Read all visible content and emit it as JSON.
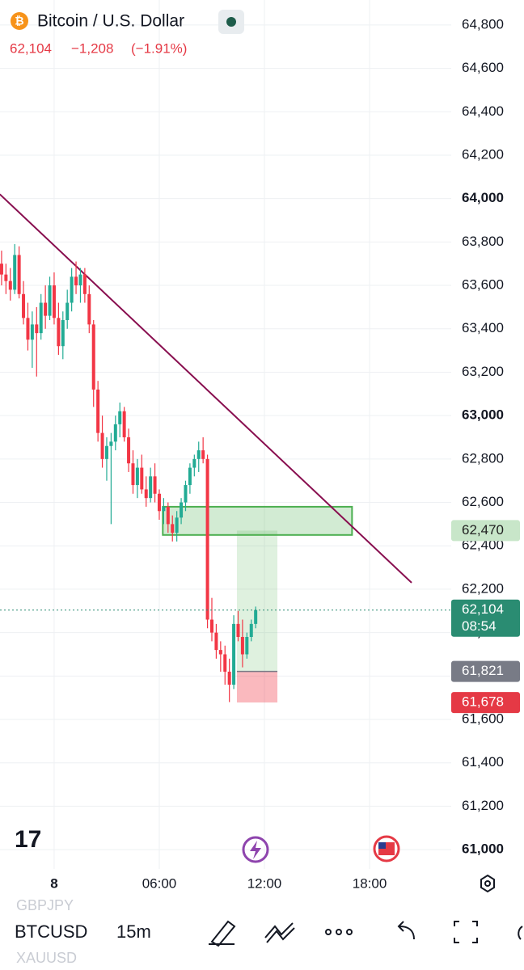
{
  "header": {
    "symbol_title": "Bitcoin / U.S. Dollar",
    "quote": "62,104",
    "change": "−1,208",
    "change_percent": "(−1.91%)"
  },
  "chart_data": {
    "type": "candlestick",
    "up_color": "#22ab94",
    "down_color": "#f23645",
    "xlim": [
      -3.09,
      22.66
    ],
    "ylim": [
      60911,
      64915
    ],
    "xticks": [
      {
        "value": 0,
        "label": "8"
      },
      {
        "value": 6,
        "label": "06:00"
      },
      {
        "value": 12,
        "label": "12:00"
      },
      {
        "value": 18,
        "label": "18:00"
      }
    ],
    "yticks": [
      {
        "value": 61000,
        "label": "61,000"
      },
      {
        "value": 61200,
        "label": "61,200"
      },
      {
        "value": 61400,
        "label": "61,400"
      },
      {
        "value": 61600,
        "label": "61,600"
      },
      {
        "value": 61800,
        "label": "61,800"
      },
      {
        "value": 62000,
        "label": "62,000"
      },
      {
        "value": 62200,
        "label": "62,200"
      },
      {
        "value": 62400,
        "label": "62,400"
      },
      {
        "value": 62600,
        "label": "62,600"
      },
      {
        "value": 62800,
        "label": "62,800"
      },
      {
        "value": 63000,
        "label": "63,000"
      },
      {
        "value": 63200,
        "label": "63,200"
      },
      {
        "value": 63400,
        "label": "63,400"
      },
      {
        "value": 63600,
        "label": "63,600"
      },
      {
        "value": 63800,
        "label": "63,800"
      },
      {
        "value": 64000,
        "label": "64,000"
      },
      {
        "value": 64200,
        "label": "64,200"
      },
      {
        "value": 64400,
        "label": "64,400"
      },
      {
        "value": 64600,
        "label": "64,600"
      },
      {
        "value": 64800,
        "label": "64,800"
      }
    ],
    "grid": true,
    "x": [
      -3,
      -2.75,
      -2.5,
      -2.25,
      -2,
      -1.75,
      -1.5,
      -1.25,
      -1,
      -0.75,
      -0.5,
      -0.25,
      0,
      0.25,
      0.5,
      0.75,
      1,
      1.25,
      1.5,
      1.75,
      2,
      2.25,
      2.5,
      2.75,
      3,
      3.25,
      3.5,
      3.75,
      4,
      4.25,
      4.5,
      4.75,
      5,
      5.25,
      5.5,
      5.75,
      6,
      6.25,
      6.5,
      6.75,
      7,
      7.25,
      7.5,
      7.75,
      8,
      8.25,
      8.5,
      8.75,
      9,
      9.25,
      9.5,
      9.75,
      10,
      10.25,
      10.5,
      10.75,
      11,
      11.25,
      11.5
    ],
    "open": [
      63700,
      63650,
      63620,
      63580,
      63740,
      63560,
      63450,
      63350,
      63420,
      63380,
      63520,
      63460,
      63600,
      63450,
      63320,
      63440,
      63520,
      63640,
      63600,
      63650,
      63560,
      63420,
      63120,
      62920,
      62800,
      62860,
      62880,
      62960,
      63020,
      62900,
      62780,
      62680,
      62760,
      62660,
      62620,
      62720,
      62640,
      62560,
      62580,
      62500,
      62460,
      62530,
      62600,
      62680,
      62760,
      62800,
      62840,
      62800,
      62060,
      62000,
      61920,
      61900,
      61820,
      61760,
      62040,
      61980,
      61900,
      61980,
      62040
    ],
    "high": [
      63760,
      63700,
      63680,
      63790,
      63780,
      63620,
      63520,
      63480,
      63500,
      63560,
      63600,
      63640,
      63660,
      63520,
      63480,
      63580,
      63680,
      63710,
      63680,
      63680,
      63600,
      63440,
      63160,
      63000,
      62900,
      62920,
      63000,
      63060,
      63040,
      62940,
      62840,
      62800,
      62820,
      62720,
      62760,
      62780,
      62660,
      62620,
      62600,
      62540,
      62560,
      62620,
      62700,
      62780,
      62820,
      62880,
      62900,
      62820,
      62160,
      62040,
      61960,
      61940,
      61880,
      62080,
      62100,
      62060,
      62000,
      62060,
      62120
    ],
    "low": [
      63600,
      63560,
      63530,
      63560,
      63540,
      63420,
      63300,
      63220,
      63180,
      63350,
      63400,
      63440,
      63420,
      63280,
      63260,
      63400,
      63480,
      63560,
      63520,
      63520,
      63380,
      63040,
      62880,
      62760,
      62700,
      62500,
      62840,
      62900,
      62880,
      62740,
      62640,
      62620,
      62640,
      62580,
      62600,
      62600,
      62520,
      62500,
      62460,
      62420,
      62420,
      62500,
      62560,
      62640,
      62720,
      62740,
      62780,
      62020,
      61960,
      61880,
      61820,
      61760,
      61680,
      61740,
      61960,
      61840,
      61880,
      61960,
      62020
    ],
    "close": [
      63650,
      63620,
      63580,
      63740,
      63560,
      63450,
      63350,
      63420,
      63380,
      63520,
      63460,
      63600,
      63450,
      63320,
      63440,
      63520,
      63640,
      63600,
      63650,
      63560,
      63420,
      63120,
      62920,
      62800,
      62860,
      62880,
      62960,
      63020,
      62900,
      62780,
      62680,
      62760,
      62660,
      62620,
      62720,
      62640,
      62560,
      62580,
      62500,
      62460,
      62530,
      62600,
      62680,
      62760,
      62800,
      62840,
      62800,
      62060,
      62000,
      61920,
      61900,
      61820,
      61760,
      62040,
      61980,
      61900,
      61980,
      62040,
      62104
    ],
    "trendline": {
      "x": [
        -3.1,
        20.4
      ],
      "values": [
        64020,
        62230
      ],
      "color": "#880e4f"
    },
    "zone": {
      "x": [
        6.2,
        17.0
      ],
      "values": [
        62450,
        62580
      ],
      "color": "#4caf50"
    },
    "position": {
      "x": [
        10.43,
        12.74
      ],
      "target": 62470,
      "entry": 61821,
      "stop": 61678
    },
    "current_price": 62104,
    "price_labels": [
      {
        "value": 62470,
        "label": "62,470",
        "color": "#c8e6c9",
        "text_color": "#222222"
      },
      {
        "value": 62104,
        "label": "62,104",
        "color": "#2a8c72",
        "text_color": "#ffffff",
        "countdown": "08:54"
      },
      {
        "value": 61821,
        "label": "61,821",
        "color": "#787b86",
        "text_color": "#ffffff"
      },
      {
        "value": 61678,
        "label": "61,678",
        "color": "#e53945",
        "text_color": "#ffffff"
      }
    ]
  },
  "toolbar": {
    "symbol": "BTCUSD",
    "interval": "15m",
    "above": "GBPJPY",
    "below": "XAUUSD"
  }
}
